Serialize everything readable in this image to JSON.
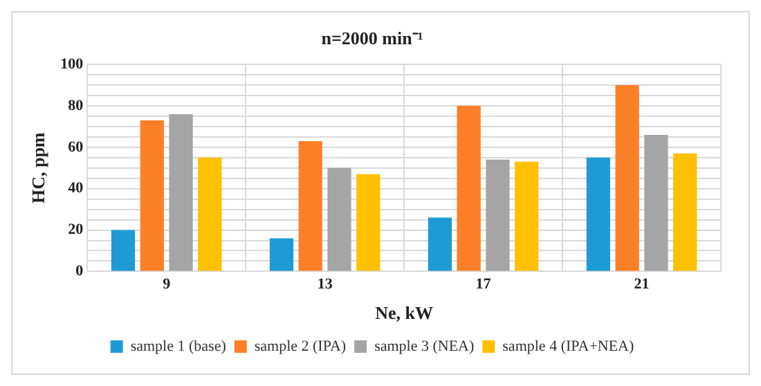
{
  "chart_data": {
    "type": "bar",
    "title": "n=2000 min⁻¹",
    "xlabel": "Ne, kW",
    "ylabel": "HC, ppm",
    "categories": [
      "9",
      "13",
      "17",
      "21"
    ],
    "series": [
      {
        "name": "sample 1 (base)",
        "color": "#1e9bd7",
        "values": [
          20,
          16,
          26,
          55
        ]
      },
      {
        "name": "sample 2 (IPA)",
        "color": "#fd7f28",
        "values": [
          73,
          63,
          80,
          90
        ]
      },
      {
        "name": "sample 3 (NEA)",
        "color": "#a5a5a5",
        "values": [
          76,
          50,
          54,
          66
        ]
      },
      {
        "name": "sample 4 (IPA+NEA)",
        "color": "#ffc000",
        "values": [
          55,
          47,
          53,
          57
        ]
      }
    ],
    "ylim": [
      0,
      100
    ],
    "yticks": [
      0,
      {
        "value": 5,
        "label": null
      },
      {
        "value": 10,
        "label": null
      },
      {
        "value": 15,
        "label": null
      },
      20,
      {
        "value": 25,
        "label": null
      },
      {
        "value": 30,
        "label": null
      },
      {
        "value": 35,
        "label": null
      },
      40,
      {
        "value": 45,
        "label": null
      },
      {
        "value": 50,
        "label": null
      },
      {
        "value": 55,
        "label": null
      },
      60,
      {
        "value": 65,
        "label": null
      },
      {
        "value": 70,
        "label": null
      },
      {
        "value": 75,
        "label": null
      },
      80,
      {
        "value": 85,
        "label": null
      },
      {
        "value": 90,
        "label": null
      },
      {
        "value": 95,
        "label": null
      },
      100
    ],
    "grid": true,
    "legend": "bottom"
  }
}
